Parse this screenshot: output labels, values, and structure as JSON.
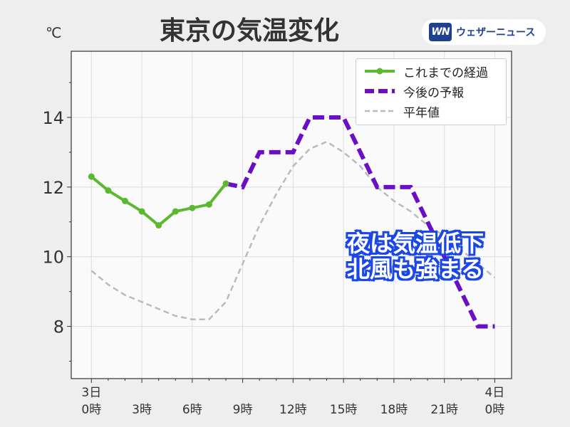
{
  "header": {
    "title": "東京の気温変化",
    "unit": "℃",
    "brand_logo": "WN",
    "brand_name": "ウェザーニュース"
  },
  "annotation": {
    "line1": "夜は気温低下",
    "line2": "北風も強まる"
  },
  "colors": {
    "observed": "#5cb82e",
    "forecast": "#6a0fc7",
    "normal": "#bbbbbb",
    "annotation_outline": "#1a47e6",
    "plot_background": "#fbfafb"
  },
  "chart_data": {
    "type": "line",
    "title": "東京の気温変化",
    "xlabel": "",
    "ylabel": "℃",
    "xlim": [
      -1.2,
      25
    ],
    "ylim": [
      6.5,
      15.9
    ],
    "y_ticks": [
      8,
      10,
      12,
      14
    ],
    "grid": true,
    "legend_position": "top-right",
    "x_tick_labels": [
      {
        "x": 0,
        "date": "3日",
        "time": "0時"
      },
      {
        "x": 3,
        "date": "",
        "time": "3時"
      },
      {
        "x": 6,
        "date": "",
        "time": "6時"
      },
      {
        "x": 9,
        "date": "",
        "time": "9時"
      },
      {
        "x": 12,
        "date": "",
        "time": "12時"
      },
      {
        "x": 15,
        "date": "",
        "time": "15時"
      },
      {
        "x": 18,
        "date": "",
        "time": "18時"
      },
      {
        "x": 21,
        "date": "",
        "time": "21時"
      },
      {
        "x": 24,
        "date": "4日",
        "time": "0時"
      }
    ],
    "series": [
      {
        "name": "これまでの経過",
        "style": "solid-markers",
        "x": [
          0,
          1,
          2,
          3,
          4,
          5,
          6,
          7,
          8
        ],
        "y": [
          12.3,
          11.9,
          11.6,
          11.3,
          10.9,
          11.3,
          11.4,
          11.5,
          12.1
        ]
      },
      {
        "name": "今後の予報",
        "style": "dashed-thick",
        "x": [
          8,
          9,
          10,
          11,
          12,
          13,
          14,
          15,
          16,
          17,
          18,
          19,
          20,
          21,
          22,
          23,
          24
        ],
        "y": [
          12.1,
          12.0,
          13.0,
          13.0,
          13.0,
          14.0,
          14.0,
          14.0,
          13.0,
          12.0,
          12.0,
          12.0,
          11.0,
          10.0,
          9.0,
          8.0,
          8.0
        ]
      },
      {
        "name": "平年値",
        "style": "dashed-thin",
        "x": [
          0,
          1,
          2,
          3,
          4,
          5,
          6,
          7,
          8,
          9,
          10,
          11,
          12,
          13,
          14,
          15,
          16,
          17,
          18,
          19,
          20,
          21,
          22,
          23,
          24
        ],
        "y": [
          9.6,
          9.2,
          8.9,
          8.7,
          8.5,
          8.3,
          8.2,
          8.2,
          8.7,
          9.8,
          10.9,
          11.8,
          12.6,
          13.1,
          13.3,
          13.0,
          12.6,
          12.0,
          11.6,
          11.3,
          10.9,
          10.6,
          10.2,
          9.8,
          9.4
        ]
      }
    ]
  }
}
